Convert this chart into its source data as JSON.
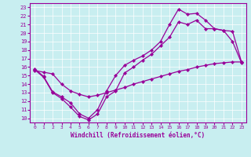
{
  "xlabel": "Windchill (Refroidissement éolien,°C)",
  "bg_color": "#c8eef0",
  "line_color": "#990099",
  "xlim": [
    -0.5,
    23.5
  ],
  "ylim": [
    9.5,
    23.5
  ],
  "xticks": [
    0,
    1,
    2,
    3,
    4,
    5,
    6,
    7,
    8,
    9,
    10,
    11,
    12,
    13,
    14,
    15,
    16,
    17,
    18,
    19,
    20,
    21,
    22,
    23
  ],
  "yticks": [
    10,
    11,
    12,
    13,
    14,
    15,
    16,
    17,
    18,
    19,
    20,
    21,
    22,
    23
  ],
  "line1_x": [
    0,
    1,
    2,
    3,
    4,
    5,
    6,
    7,
    8,
    9,
    10,
    11,
    12,
    13,
    14,
    15,
    16,
    17,
    18,
    19,
    20,
    21,
    22,
    23
  ],
  "line1_y": [
    15.8,
    14.9,
    13.1,
    12.5,
    11.8,
    10.5,
    10.0,
    11.0,
    13.2,
    15.0,
    16.2,
    16.8,
    17.3,
    18.0,
    19.0,
    21.0,
    22.8,
    22.2,
    22.3,
    21.5,
    20.5,
    20.3,
    20.2,
    16.6
  ],
  "line2_x": [
    0,
    1,
    2,
    3,
    4,
    5,
    6,
    7,
    8,
    9,
    10,
    11,
    12,
    13,
    14,
    15,
    16,
    17,
    18,
    19,
    20,
    21,
    22,
    23
  ],
  "line2_y": [
    15.7,
    14.8,
    13.0,
    12.3,
    11.3,
    10.2,
    9.8,
    10.5,
    12.5,
    13.2,
    15.3,
    16.0,
    16.8,
    17.5,
    18.5,
    19.5,
    21.3,
    21.0,
    21.5,
    20.5,
    20.5,
    20.3,
    19.0,
    16.5
  ],
  "line3_x": [
    0,
    1,
    2,
    3,
    4,
    5,
    6,
    7,
    8,
    9,
    10,
    11,
    12,
    13,
    14,
    15,
    16,
    17,
    18,
    19,
    20,
    21,
    22,
    23
  ],
  "line3_y": [
    15.6,
    15.4,
    15.2,
    14.0,
    13.2,
    12.8,
    12.5,
    12.7,
    13.0,
    13.3,
    13.6,
    14.0,
    14.3,
    14.6,
    14.9,
    15.2,
    15.5,
    15.7,
    16.0,
    16.2,
    16.4,
    16.5,
    16.6,
    16.6
  ]
}
